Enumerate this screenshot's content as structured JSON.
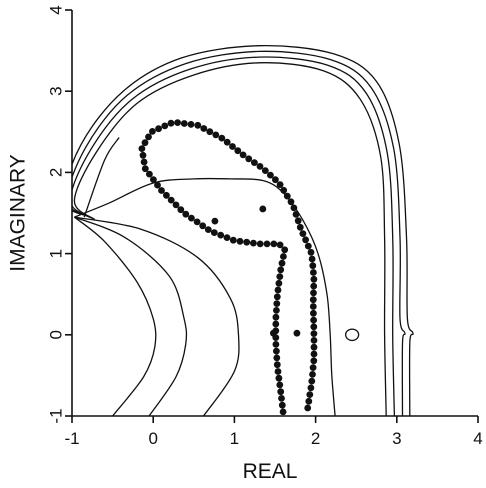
{
  "chart_data": {
    "type": "scatter",
    "xlabel": "REAL",
    "ylabel": "IMAGINARY",
    "xlim": [
      -1,
      4
    ],
    "ylim": [
      -1,
      4
    ],
    "x_ticks": [
      "-1",
      "0",
      "1",
      "2",
      "3",
      "4"
    ],
    "y_ticks": [
      "-1",
      "0",
      "1",
      "2",
      "3",
      "4"
    ],
    "grid": false,
    "colors": {
      "ink": "#111111",
      "background": "#ffffff"
    },
    "contours": [
      [
        [
          2.87,
          -1
        ],
        [
          2.85,
          0
        ],
        [
          2.85,
          1.2
        ],
        [
          2.8,
          2.2
        ],
        [
          2.55,
          2.9
        ],
        [
          2.1,
          3.25
        ],
        [
          1.3,
          3.35
        ],
        [
          0.5,
          3.2
        ],
        [
          -0.2,
          2.85
        ],
        [
          -0.7,
          2.25
        ],
        [
          -0.97,
          1.65
        ],
        [
          -0.72,
          1.42
        ]
      ],
      [
        [
          2.97,
          -1
        ],
        [
          2.95,
          0
        ],
        [
          2.95,
          1.2
        ],
        [
          2.88,
          2.25
        ],
        [
          2.62,
          2.98
        ],
        [
          2.15,
          3.32
        ],
        [
          1.3,
          3.42
        ],
        [
          0.45,
          3.27
        ],
        [
          -0.26,
          2.9
        ],
        [
          -0.77,
          2.28
        ],
        [
          -1.02,
          1.65
        ],
        [
          -0.74,
          1.43
        ]
      ],
      [
        [
          3.07,
          -1
        ],
        [
          3.07,
          -0.1
        ],
        [
          3.1,
          0.02
        ],
        [
          3.04,
          0.2
        ],
        [
          3.04,
          1.2
        ],
        [
          2.96,
          2.3
        ],
        [
          2.68,
          3.05
        ],
        [
          2.18,
          3.39
        ],
        [
          1.3,
          3.49
        ],
        [
          0.4,
          3.34
        ],
        [
          -0.32,
          2.95
        ],
        [
          -0.83,
          2.31
        ],
        [
          -1.06,
          1.65
        ],
        [
          -0.76,
          1.44
        ]
      ],
      [
        [
          3.16,
          -1
        ],
        [
          3.16,
          -0.1
        ],
        [
          3.2,
          0.02
        ],
        [
          3.13,
          0.2
        ],
        [
          3.12,
          1.2
        ],
        [
          3.03,
          2.35
        ],
        [
          2.75,
          3.12
        ],
        [
          2.22,
          3.46
        ],
        [
          1.3,
          3.56
        ],
        [
          0.35,
          3.41
        ],
        [
          -0.37,
          3.0
        ],
        [
          -0.89,
          2.34
        ],
        [
          -1.1,
          1.65
        ],
        [
          -0.78,
          1.45
        ]
      ],
      [
        [
          -0.97,
          1.45
        ],
        [
          -0.55,
          1.62
        ],
        [
          0.0,
          1.87
        ],
        [
          0.5,
          1.92
        ],
        [
          0.95,
          1.92
        ],
        [
          1.35,
          1.9
        ],
        [
          1.6,
          1.75
        ],
        [
          1.85,
          1.4
        ],
        [
          2.03,
          1.0
        ],
        [
          2.14,
          0.5
        ],
        [
          2.18,
          0
        ],
        [
          2.2,
          -0.5
        ],
        [
          2.24,
          -1
        ]
      ],
      [
        [
          -0.97,
          1.45
        ],
        [
          -0.6,
          1.15
        ],
        [
          -0.2,
          0.65
        ],
        [
          0.0,
          0.2
        ],
        [
          0.02,
          -0.15
        ],
        [
          -0.12,
          -0.52
        ],
        [
          -0.5,
          -1
        ]
      ],
      [
        [
          -0.97,
          1.45
        ],
        [
          -0.35,
          1.2
        ],
        [
          0.2,
          0.72
        ],
        [
          0.38,
          0.2
        ],
        [
          0.4,
          -0.12
        ],
        [
          0.28,
          -0.52
        ],
        [
          -0.05,
          -1
        ]
      ],
      [
        [
          -0.97,
          1.45
        ],
        [
          -0.15,
          1.3
        ],
        [
          0.55,
          0.95
        ],
        [
          0.95,
          0.45
        ],
        [
          1.05,
          0
        ],
        [
          1.0,
          -0.45
        ],
        [
          0.62,
          -1
        ]
      ],
      [
        [
          -0.85,
          1.45
        ],
        [
          -0.6,
          2.15
        ],
        [
          -0.42,
          2.43
        ]
      ]
    ],
    "small_loop": {
      "center": [
        2.45,
        0
      ],
      "rx": 0.08,
      "ry": 0.07
    },
    "loci": [
      [
        [
          1.6,
          -0.95
        ],
        [
          1.57,
          -0.7
        ],
        [
          1.53,
          -0.4
        ],
        [
          1.51,
          -0.1
        ],
        [
          1.51,
          0.2
        ],
        [
          1.53,
          0.5
        ],
        [
          1.57,
          0.8
        ],
        [
          1.62,
          1.05
        ],
        [
          1.55,
          1.12
        ],
        [
          1.3,
          1.12
        ],
        [
          1.0,
          1.16
        ],
        [
          0.7,
          1.28
        ],
        [
          0.38,
          1.5
        ],
        [
          0.1,
          1.78
        ],
        [
          -0.1,
          2.05
        ],
        [
          -0.14,
          2.3
        ],
        [
          -0.02,
          2.5
        ],
        [
          0.25,
          2.62
        ],
        [
          0.55,
          2.58
        ],
        [
          0.85,
          2.42
        ],
        [
          1.1,
          2.22
        ],
        [
          1.35,
          2.05
        ],
        [
          1.55,
          1.87
        ],
        [
          1.72,
          1.6
        ],
        [
          1.82,
          1.3
        ],
        [
          1.95,
          1.0
        ],
        [
          1.98,
          0.7
        ],
        [
          1.97,
          0.4
        ],
        [
          1.98,
          0
        ],
        [
          1.98,
          -0.3
        ],
        [
          1.95,
          -0.6
        ],
        [
          1.9,
          -0.92
        ]
      ]
    ],
    "isolated_points": [
      [
        0.76,
        1.4
      ],
      [
        1.35,
        1.55
      ],
      [
        1.77,
        0.02
      ],
      [
        1.48,
        0.02
      ]
    ]
  }
}
